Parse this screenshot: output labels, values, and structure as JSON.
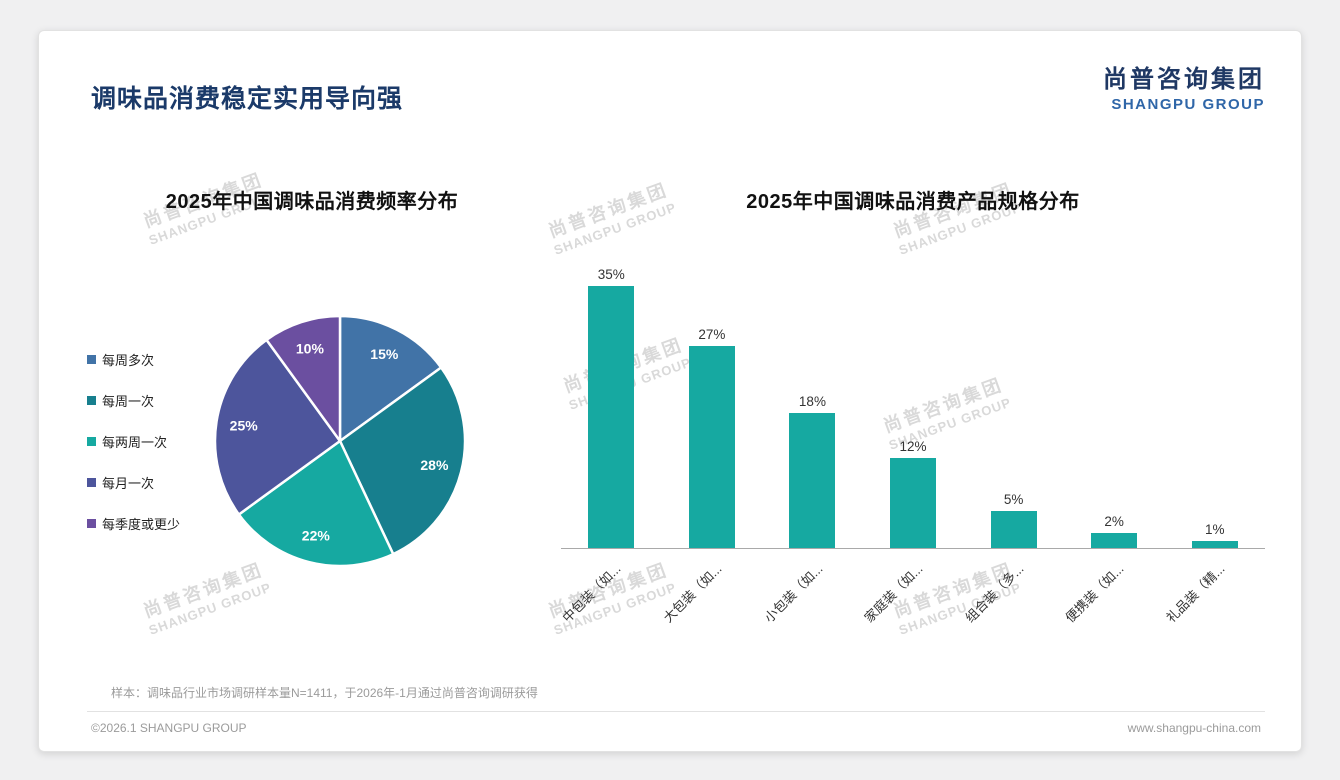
{
  "page_title": "调味品消费稳定实用导向强",
  "logo": {
    "cn": "尚普咨询集团",
    "en": "SHANGPU GROUP"
  },
  "watermark": {
    "cn": "尚普咨询集团",
    "en": "SHANGPU GROUP"
  },
  "chart_data": [
    {
      "type": "pie",
      "title": "2025年中国调味品消费频率分布",
      "labels": [
        "每周多次",
        "每周一次",
        "每两周一次",
        "每月一次",
        "每季度或更少"
      ],
      "values": [
        15,
        28,
        22,
        25,
        10
      ],
      "value_labels": [
        "15%",
        "28%",
        "22%",
        "25%",
        "10%"
      ],
      "colors": [
        "#4173a7",
        "#177f8e",
        "#16a9a1",
        "#4d559c",
        "#6b4fa0"
      ],
      "legend_position": "left",
      "start_angle_deg": 0,
      "direction": "clockwise"
    },
    {
      "type": "bar",
      "title": "2025年中国调味品消费产品规格分布",
      "categories": [
        "中包装（如...",
        "大包装（如...",
        "小包装（如...",
        "家庭装（如...",
        "组合装（多...",
        "便携装（如...",
        "礼品装（精..."
      ],
      "values": [
        35,
        27,
        18,
        12,
        5,
        2,
        1
      ],
      "value_labels": [
        "35%",
        "27%",
        "18%",
        "12%",
        "5%",
        "2%",
        "1%"
      ],
      "bar_color": "#16a9a1",
      "ylim": [
        0,
        40
      ],
      "grid": false,
      "legend_position": "none"
    }
  ],
  "footnote": "样本：调味品行业市场调研样本量N=1411，于2026年-1月通过尚普咨询调研获得",
  "footer": {
    "copyright": "©2026.1 SHANGPU GROUP",
    "website": "www.shangpu-china.com"
  }
}
